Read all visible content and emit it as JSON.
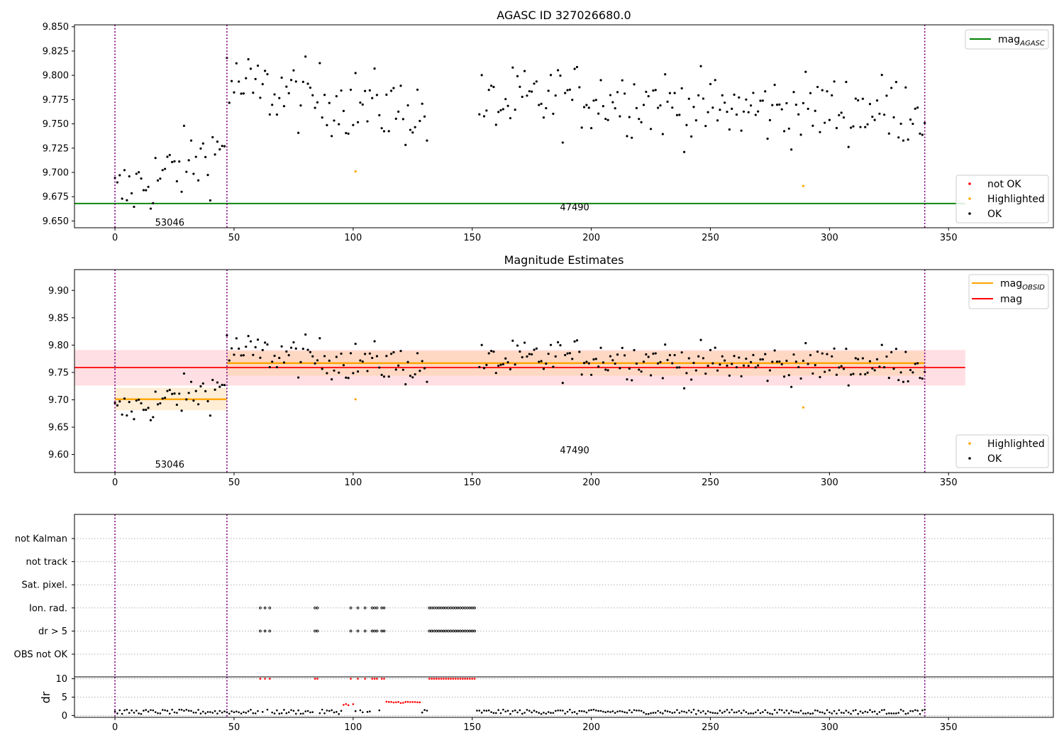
{
  "chart_data": [
    {
      "type": "scatter",
      "title": "AGASC ID 327026680.0",
      "xlabel": "",
      "ylabel": "",
      "xlim": [
        -17,
        394
      ],
      "ylim": [
        9.643,
        9.852
      ],
      "xticks": [
        "0",
        "50",
        "100",
        "150",
        "200",
        "250",
        "300",
        "350"
      ],
      "yticks": [
        "9.650",
        "9.675",
        "9.700",
        "9.725",
        "9.750",
        "9.775",
        "9.800",
        "9.825",
        "9.850"
      ],
      "obs_boundaries": [
        0,
        47,
        340
      ],
      "obs_labels": [
        {
          "text": "53046",
          "x": 23,
          "y": 9.648
        },
        {
          "text": "47490",
          "x": 193,
          "y": 9.664
        }
      ],
      "reference_lines": [
        {
          "name": "magAGASC",
          "y": 9.668,
          "x_range": [
            -17,
            357
          ],
          "color": "#008000"
        }
      ],
      "legend_lines": [
        {
          "label": "mag",
          "sub": "AGASC",
          "color": "#008000"
        }
      ],
      "legend_markers": [
        {
          "label": "not OK",
          "color": "#ff0000"
        },
        {
          "label": "Highlighted",
          "color": "#ffa500"
        },
        {
          "label": "OK",
          "color": "#000000"
        }
      ],
      "highlighted_points": [
        [
          101,
          9.701
        ],
        [
          289,
          9.686
        ]
      ],
      "grid": false,
      "legend_position": "top-right / bottom-right"
    },
    {
      "type": "scatter",
      "title": "Magnitude Estimates",
      "xlabel": "",
      "ylabel": "",
      "xlim": [
        -17,
        394
      ],
      "ylim": [
        9.567,
        9.938
      ],
      "xticks": [
        "0",
        "50",
        "100",
        "150",
        "200",
        "250",
        "300",
        "350"
      ],
      "yticks": [
        "9.60",
        "9.65",
        "9.70",
        "9.75",
        "9.80",
        "9.85",
        "9.90"
      ],
      "obs_boundaries": [
        0,
        47,
        340
      ],
      "obs_labels": [
        {
          "text": "53046",
          "x": 23,
          "y": 9.581
        },
        {
          "text": "47490",
          "x": 193,
          "y": 9.607
        }
      ],
      "mag_obsid": [
        {
          "x_range": [
            0,
            47
          ],
          "value": 9.701,
          "band": [
            9.681,
            9.722
          ]
        },
        {
          "x_range": [
            47,
            340
          ],
          "value": 9.767,
          "band": [
            9.744,
            9.789
          ]
        }
      ],
      "mag": {
        "x_range": [
          -17,
          357
        ],
        "value": 9.759,
        "band": [
          9.726,
          9.791
        ]
      },
      "legend_lines": [
        {
          "label": "mag",
          "sub": "OBSID",
          "color": "#ffa500"
        },
        {
          "label": "mag",
          "sub": "",
          "color": "#ff0000"
        }
      ],
      "legend_markers": [
        {
          "label": "Highlighted",
          "color": "#ffa500"
        },
        {
          "label": "OK",
          "color": "#000000"
        }
      ],
      "highlighted_points": [
        [
          101,
          9.701
        ],
        [
          289,
          9.686
        ]
      ],
      "grid": false
    },
    {
      "type": "scatter",
      "title": "",
      "xlim": [
        -17,
        394
      ],
      "flag_rows": [
        "not Kalman",
        "not track",
        "Sat. pixel.",
        "Ion. rad.",
        "dr > 5",
        "OBS not OK"
      ],
      "flagged_x": [
        61,
        63,
        65,
        84,
        85,
        99,
        102,
        105,
        108,
        109,
        110,
        112,
        113,
        132,
        133,
        134,
        135,
        136,
        137,
        138,
        139,
        140,
        141,
        142,
        143,
        144,
        145,
        146,
        147,
        148,
        149,
        150,
        151
      ],
      "flagged_rows": [
        "Ion. rad.",
        "dr > 5"
      ],
      "dr_panel": {
        "ylabel": "dr",
        "yticks": [
          "0",
          "5",
          "10"
        ],
        "ylim": [
          -0.5,
          10.5
        ]
      },
      "obs_boundaries": [
        0,
        47,
        340
      ],
      "xticks": [
        "0",
        "50",
        "100",
        "150",
        "200",
        "250",
        "300",
        "350"
      ],
      "grid": "horizontal dotted"
    }
  ]
}
